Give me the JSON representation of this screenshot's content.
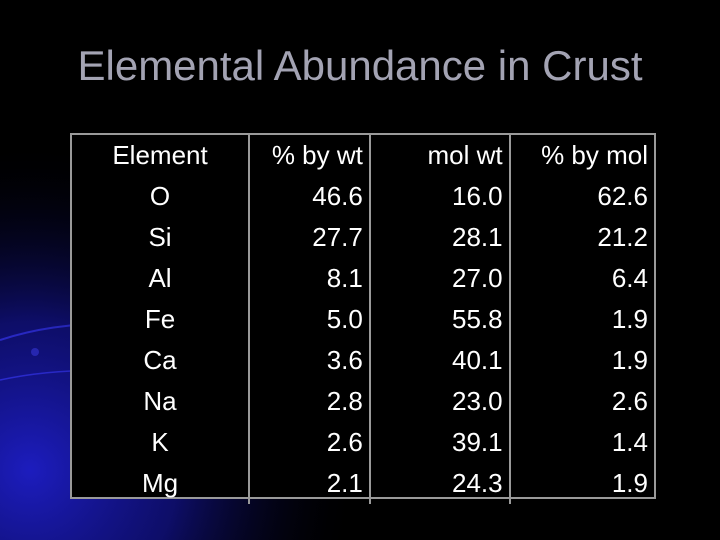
{
  "title": "Elemental Abundance in Crust",
  "table": {
    "headers": [
      "Element",
      "% by wt",
      "mol wt",
      "% by mol"
    ],
    "rows": [
      [
        "O",
        "46.6",
        "16.0",
        "62.6"
      ],
      [
        "Si",
        "27.7",
        "28.1",
        "21.2"
      ],
      [
        "Al",
        "8.1",
        "27.0",
        "6.4"
      ],
      [
        "Fe",
        "5.0",
        "55.8",
        "1.9"
      ],
      [
        "Ca",
        "3.6",
        "40.1",
        "1.9"
      ],
      [
        "Na",
        "2.8",
        "23.0",
        "2.6"
      ],
      [
        "K",
        "2.6",
        "39.1",
        "1.4"
      ],
      [
        "Mg",
        "2.1",
        "24.3",
        "1.9"
      ]
    ]
  },
  "colors": {
    "background": "#000000",
    "title": "#a3a3b3",
    "text": "#ffffff",
    "accent_glow": "#1a1aa0"
  }
}
